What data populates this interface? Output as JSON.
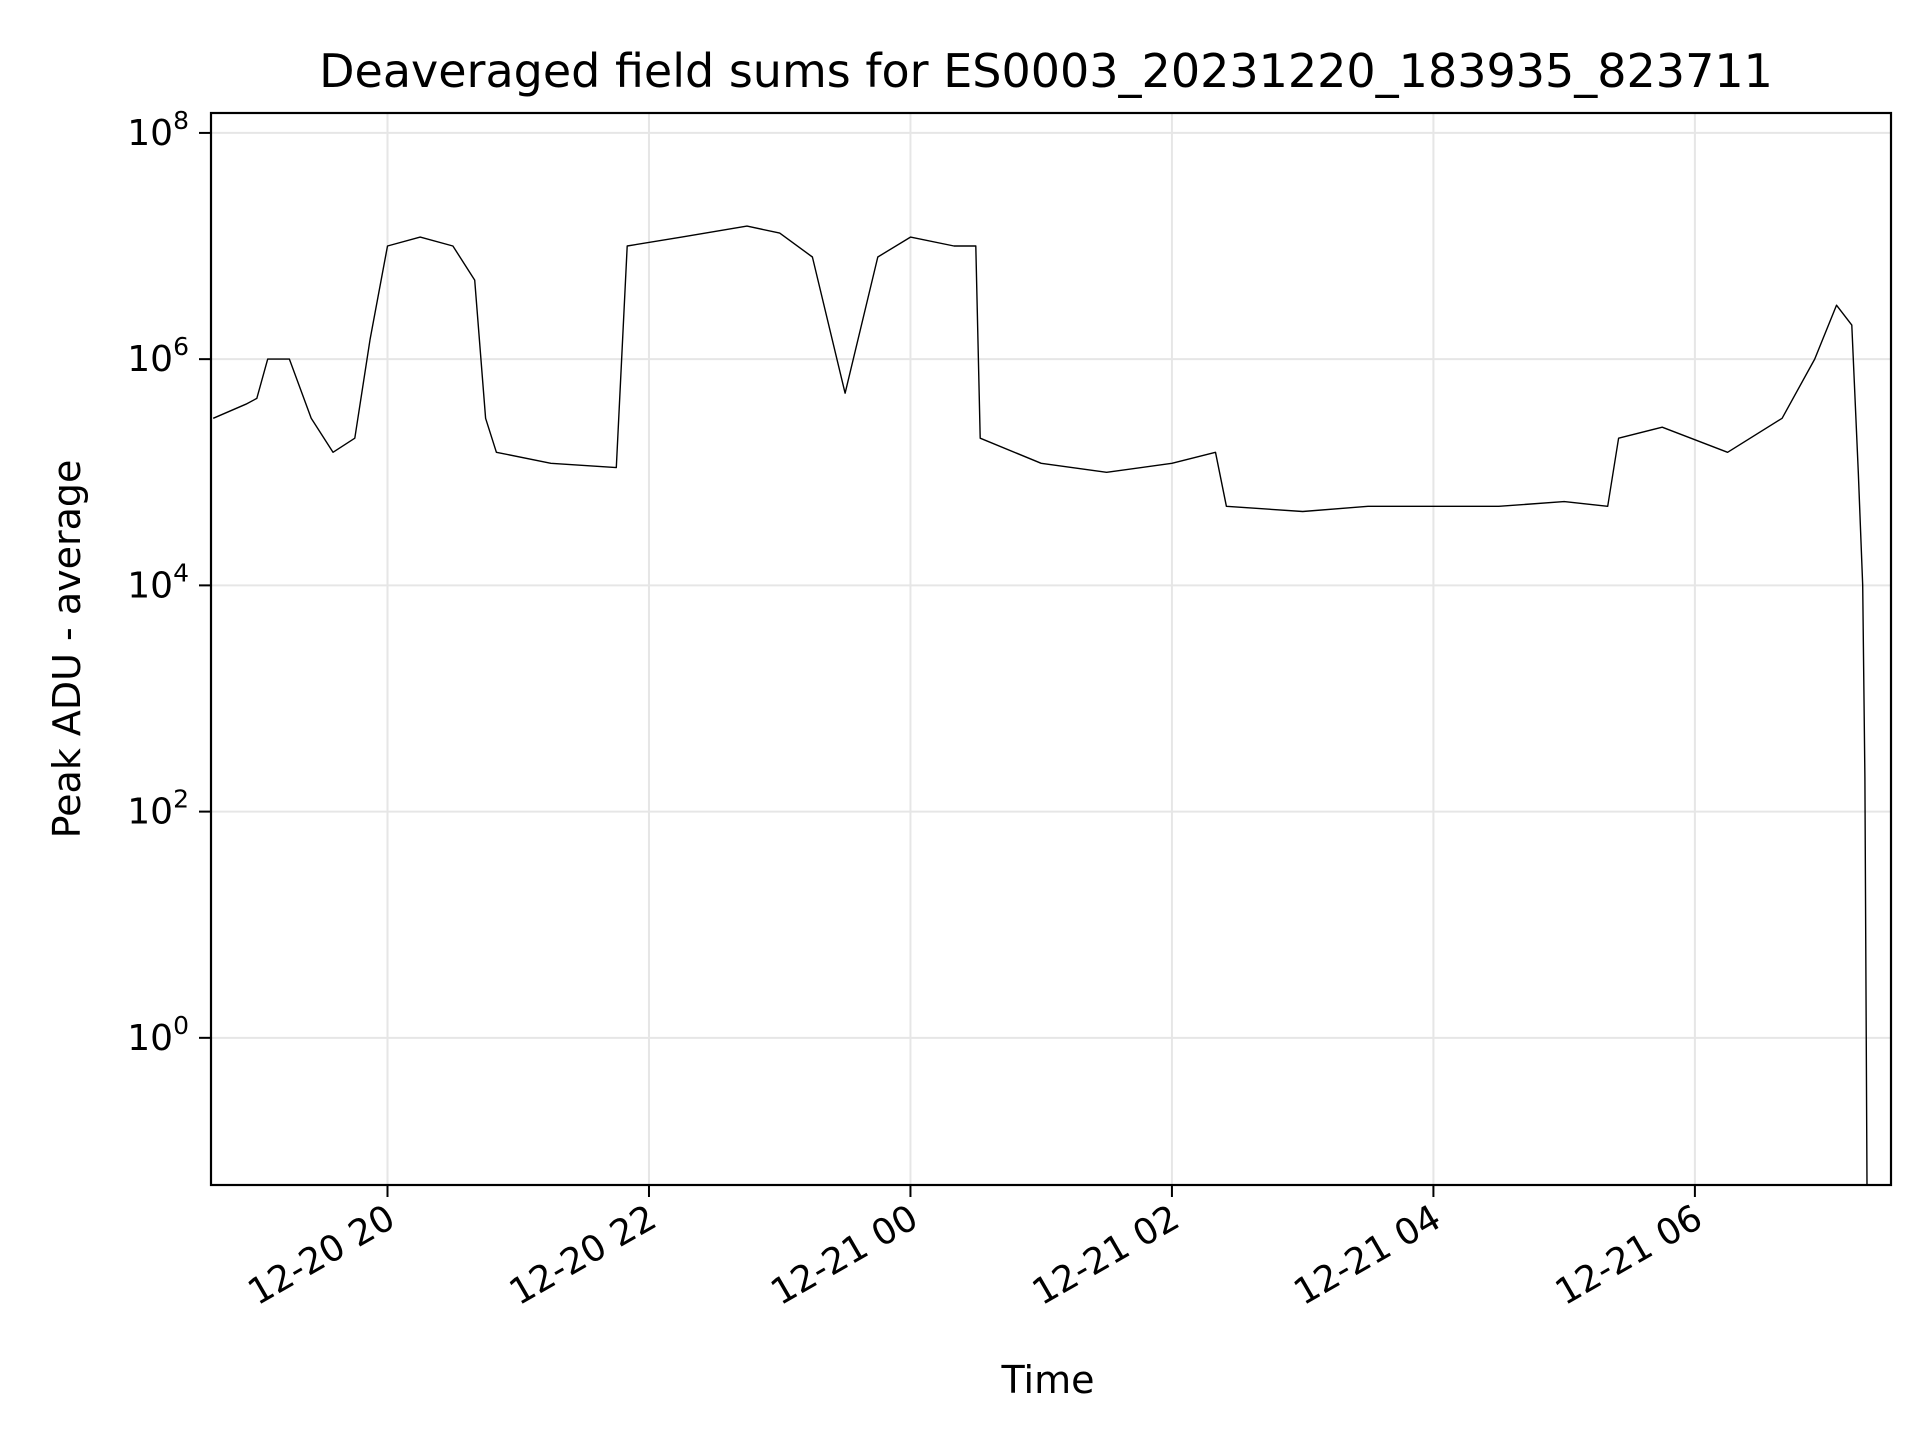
{
  "chart_data": {
    "type": "line",
    "title": "Deaveraged field sums for ES0003_20231220_183935_823711",
    "xlabel": "Time",
    "ylabel": "Peak ADU - average",
    "y_scale": "log",
    "ylim": [
      0.05,
      150000000
    ],
    "xlim": [
      "2023-12-20 18:39",
      "2023-12-21 07:30"
    ],
    "grid": true,
    "legend": "none",
    "line_color": "#000000",
    "x_ticks": [
      {
        "value": "2023-12-20 20:00",
        "label": "12-20 20"
      },
      {
        "value": "2023-12-20 22:00",
        "label": "12-20 22"
      },
      {
        "value": "2023-12-21 00:00",
        "label": "12-21 00"
      },
      {
        "value": "2023-12-21 02:00",
        "label": "12-21 02"
      },
      {
        "value": "2023-12-21 04:00",
        "label": "12-21 04"
      },
      {
        "value": "2023-12-21 06:00",
        "label": "12-21 06"
      }
    ],
    "y_ticks": [
      {
        "value": 1,
        "base": "10",
        "exp": "0"
      },
      {
        "value": 100,
        "base": "10",
        "exp": "2"
      },
      {
        "value": 10000,
        "base": "10",
        "exp": "4"
      },
      {
        "value": 1000000,
        "base": "10",
        "exp": "6"
      },
      {
        "value": 100000000,
        "base": "10",
        "exp": "8"
      }
    ],
    "series": [
      {
        "color": "#000000",
        "points": [
          [
            "2023-12-20 18:40",
            300000
          ],
          [
            "2023-12-20 18:55",
            400000
          ],
          [
            "2023-12-20 19:00",
            450000
          ],
          [
            "2023-12-20 19:05",
            1000000
          ],
          [
            "2023-12-20 19:15",
            1000000
          ],
          [
            "2023-12-20 19:25",
            300000
          ],
          [
            "2023-12-20 19:35",
            150000
          ],
          [
            "2023-12-20 19:45",
            200000
          ],
          [
            "2023-12-20 19:52",
            1500000
          ],
          [
            "2023-12-20 20:00",
            10000000
          ],
          [
            "2023-12-20 20:15",
            12000000
          ],
          [
            "2023-12-20 20:30",
            10000000
          ],
          [
            "2023-12-20 20:40",
            5000000
          ],
          [
            "2023-12-20 20:45",
            300000
          ],
          [
            "2023-12-20 20:50",
            150000
          ],
          [
            "2023-12-20 21:15",
            120000
          ],
          [
            "2023-12-20 21:45",
            110000
          ],
          [
            "2023-12-20 21:50",
            10000000
          ],
          [
            "2023-12-20 22:15",
            12000000
          ],
          [
            "2023-12-20 22:45",
            15000000
          ],
          [
            "2023-12-20 23:00",
            13000000
          ],
          [
            "2023-12-20 23:15",
            8000000
          ],
          [
            "2023-12-20 23:30",
            500000
          ],
          [
            "2023-12-20 23:45",
            8000000
          ],
          [
            "2023-12-21 00:00",
            12000000
          ],
          [
            "2023-12-21 00:20",
            10000000
          ],
          [
            "2023-12-21 00:30",
            10000000
          ],
          [
            "2023-12-21 00:32",
            200000
          ],
          [
            "2023-12-21 01:00",
            120000
          ],
          [
            "2023-12-21 01:30",
            100000
          ],
          [
            "2023-12-21 02:00",
            120000
          ],
          [
            "2023-12-21 02:20",
            150000
          ],
          [
            "2023-12-21 02:25",
            50000
          ],
          [
            "2023-12-21 03:00",
            45000
          ],
          [
            "2023-12-21 03:30",
            50000
          ],
          [
            "2023-12-21 04:00",
            50000
          ],
          [
            "2023-12-21 04:30",
            50000
          ],
          [
            "2023-12-21 05:00",
            55000
          ],
          [
            "2023-12-21 05:20",
            50000
          ],
          [
            "2023-12-21 05:25",
            200000
          ],
          [
            "2023-12-21 05:45",
            250000
          ],
          [
            "2023-12-21 06:15",
            150000
          ],
          [
            "2023-12-21 06:40",
            300000
          ],
          [
            "2023-12-21 06:55",
            1000000
          ],
          [
            "2023-12-21 07:05",
            3000000
          ],
          [
            "2023-12-21 07:12",
            2000000
          ],
          [
            "2023-12-21 07:15",
            100000
          ],
          [
            "2023-12-21 07:17",
            10000
          ],
          [
            "2023-12-21 07:18",
            200
          ],
          [
            "2023-12-21 07:19",
            0.05
          ]
        ]
      }
    ]
  }
}
